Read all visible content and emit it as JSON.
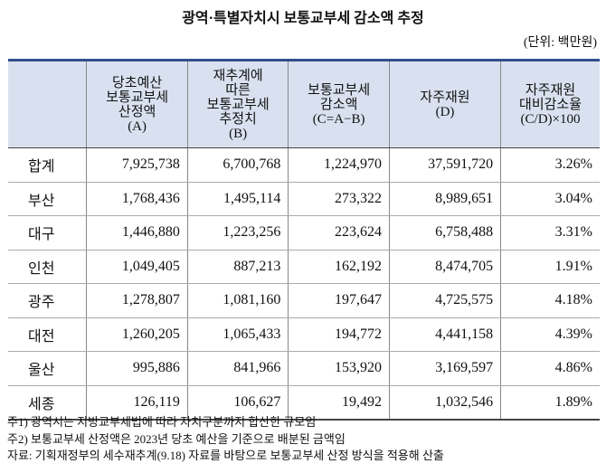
{
  "title": "광역·특별자치시 보통교부세 감소액 추정",
  "unit": "(단위: 백만원)",
  "table": {
    "header": [
      [
        "당초예산",
        "보통교부세",
        "산정액",
        "(A)"
      ],
      [
        "재추계에",
        "따른",
        "보통교부세",
        "추정치",
        "(B)"
      ],
      [
        "보통교부세",
        "감소액",
        "(C=A−B)"
      ],
      [
        "자주재원",
        "(D)"
      ],
      [
        "자주재원",
        "대비감소율",
        "(C/D)×100"
      ]
    ],
    "rows": [
      [
        "합계",
        "7,925,738",
        "6,700,768",
        "1,224,970",
        "37,591,720",
        "3.26%"
      ],
      [
        "부산",
        "1,768,436",
        "1,495,114",
        "273,322",
        "8,989,651",
        "3.04%"
      ],
      [
        "대구",
        "1,446,880",
        "1,223,256",
        "223,624",
        "6,758,488",
        "3.31%"
      ],
      [
        "인천",
        "1,049,405",
        "887,213",
        "162,192",
        "8,474,705",
        "1.91%"
      ],
      [
        "광주",
        "1,278,807",
        "1,081,160",
        "197,647",
        "4,725,575",
        "4.18%"
      ],
      [
        "대전",
        "1,260,205",
        "1,065,433",
        "194,772",
        "4,441,158",
        "4.39%"
      ],
      [
        "울산",
        "995,886",
        "841,966",
        "153,920",
        "3,169,597",
        "4.86%"
      ],
      [
        "세종",
        "126,119",
        "106,627",
        "19,492",
        "1,032,546",
        "1.89%"
      ]
    ]
  },
  "notes": [
    "주1) 광역시는 지방교부세법에 따라 자치구분까지 합산한 규모임",
    "주2) 보통교부세 산정액은 2023년 당초 예산을 기준으로 배분된 금액임",
    "자료: 기획재정부의 세수재추계(9.18) 자료를 바탕으로 보통교부세 산정 방식을 적용해 산출"
  ]
}
